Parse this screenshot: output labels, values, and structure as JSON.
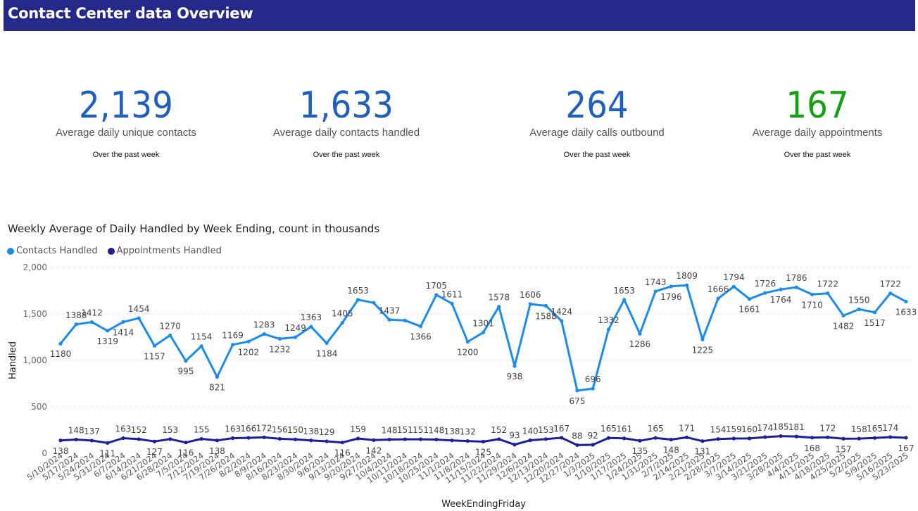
{
  "header": {
    "title": "Contact Center data Overview",
    "bg_color": "#252a8a"
  },
  "kpis": [
    {
      "value": "2,139",
      "label": "Average daily unique contacts",
      "sub": "Over the past week",
      "color": "#1f5fbf"
    },
    {
      "value": "1,633",
      "label": "Average daily contacts handled",
      "sub": "Over the past week",
      "color": "#1f5fbf"
    },
    {
      "value": "264",
      "label": "Average daily calls outbound",
      "sub": "Over the past week",
      "color": "#1f5fbf"
    },
    {
      "value": "167",
      "label": "Average daily appointments",
      "sub": "Over the past week",
      "color": "#13a013"
    }
  ],
  "chart_data": {
    "type": "line",
    "title": "Weekly Average of Daily Handled by Week Ending, count in thousands",
    "xlabel": "WeekEndingFriday",
    "ylabel": "Handled",
    "ylim": [
      0,
      2000
    ],
    "yticks": [
      "0",
      "500",
      "1,000",
      "1,500",
      "2,000"
    ],
    "grid": "horizontal dotted",
    "legend_position": "top-left",
    "categories": [
      "5/10/2024",
      "5/17/2024",
      "5/24/2024",
      "5/31/2024",
      "6/7/2024",
      "6/14/2024",
      "6/21/2024",
      "6/28/2024",
      "7/5/2024",
      "7/12/2024",
      "7/19/2024",
      "7/26/2024",
      "8/2/2024",
      "8/9/2024",
      "8/16/2024",
      "8/23/2024",
      "8/30/2024",
      "9/6/2024",
      "9/13/2024",
      "9/20/2024",
      "9/27/2024",
      "10/4/2024",
      "10/11/2024",
      "10/18/2024",
      "10/25/2024",
      "11/1/2024",
      "11/8/2024",
      "11/15/2024",
      "11/22/2024",
      "11/29/2024",
      "12/6/2024",
      "12/13/2024",
      "12/20/2024",
      "12/27/2024",
      "1/3/2025",
      "1/10/2025",
      "1/17/2025",
      "1/24/2025",
      "1/31/2025",
      "2/7/2025",
      "2/14/2025",
      "2/21/2025",
      "2/28/2025",
      "3/7/2025",
      "3/14/2025",
      "3/21/2025",
      "3/28/2025",
      "4/4/2025",
      "4/11/2025",
      "4/18/2025",
      "4/25/2025",
      "5/2/2025",
      "5/9/2025",
      "5/16/2025",
      "5/23/2025"
    ],
    "series": [
      {
        "name": "Contacts Handled",
        "color": "#1a8cf0",
        "values": [
          1180,
          1388,
          1412,
          1319,
          1414,
          1454,
          1157,
          1270,
          995,
          1154,
          821,
          1169,
          1202,
          1283,
          1232,
          1249,
          1363,
          1184,
          1405,
          1653,
          1620,
          1437,
          1430,
          1366,
          1705,
          1611,
          1200,
          1301,
          1578,
          938,
          1606,
          1588,
          1424,
          675,
          696,
          1332,
          1653,
          1286,
          1743,
          1796,
          1809,
          1225,
          1666,
          1794,
          1661,
          1726,
          1764,
          1786,
          1710,
          1722,
          1482,
          1550,
          1517,
          1722,
          1633
        ],
        "labels": [
          "1180",
          "1388",
          "1412",
          "1319",
          "1414",
          "1454",
          "1157",
          "1270",
          "995",
          "1154",
          "821",
          "1169",
          "1202",
          "1283",
          "1232",
          "1249",
          "1363",
          "1184",
          "1405",
          "1653",
          "",
          "1437",
          "",
          "1366",
          "1705",
          "1611",
          "1200",
          "1301",
          "1578",
          "938",
          "1606",
          "1588",
          "1424",
          "675",
          "696",
          "1332",
          "1653",
          "1286",
          "1743",
          "1796",
          "1809",
          "1225",
          "1666",
          "1794",
          "1661",
          "1726",
          "1764",
          "1786",
          "1710",
          "1722",
          "1482",
          "1550",
          "1517",
          "1722",
          "1633"
        ],
        "label_above": [
          0,
          1,
          1,
          0,
          0,
          1,
          0,
          1,
          0,
          1,
          0,
          1,
          0,
          1,
          0,
          1,
          1,
          0,
          1,
          1,
          1,
          1,
          1,
          0,
          1,
          1,
          0,
          1,
          1,
          0,
          1,
          0,
          1,
          0,
          1,
          1,
          1,
          0,
          1,
          0,
          1,
          0,
          1,
          1,
          0,
          1,
          0,
          1,
          0,
          1,
          0,
          1,
          0,
          1,
          0
        ]
      },
      {
        "name": "Appointments Handled",
        "color": "#1c1f9c",
        "values": [
          138,
          148,
          137,
          111,
          163,
          152,
          127,
          153,
          116,
          155,
          138,
          163,
          166,
          172,
          156,
          150,
          138,
          129,
          116,
          159,
          142,
          148,
          151,
          151,
          148,
          138,
          132,
          125,
          152,
          93,
          140,
          153,
          167,
          88,
          92,
          165,
          161,
          135,
          165,
          148,
          171,
          131,
          154,
          159,
          160,
          174,
          185,
          181,
          168,
          172,
          157,
          158,
          165,
          174,
          167
        ],
        "labels": [
          "138",
          "148",
          "137",
          "111",
          "163",
          "152",
          "127",
          "153",
          "116",
          "155",
          "138",
          "163",
          "166",
          "172",
          "156",
          "150",
          "138",
          "129",
          "116",
          "159",
          "142",
          "148",
          "151",
          "151",
          "148",
          "138",
          "132",
          "125",
          "152",
          "93",
          "140",
          "153",
          "167",
          "88",
          "92",
          "165",
          "161",
          "135",
          "165",
          "148",
          "171",
          "131",
          "154",
          "159",
          "160",
          "174",
          "185",
          "181",
          "168",
          "172",
          "157",
          "158",
          "165",
          "174",
          "167"
        ],
        "label_above": [
          0,
          1,
          1,
          0,
          1,
          1,
          0,
          1,
          0,
          1,
          0,
          1,
          1,
          1,
          1,
          1,
          1,
          1,
          0,
          1,
          0,
          1,
          1,
          1,
          1,
          1,
          1,
          0,
          1,
          1,
          1,
          1,
          1,
          1,
          1,
          1,
          1,
          0,
          1,
          0,
          1,
          0,
          1,
          1,
          1,
          1,
          1,
          1,
          0,
          1,
          0,
          1,
          1,
          1,
          0
        ]
      }
    ]
  }
}
